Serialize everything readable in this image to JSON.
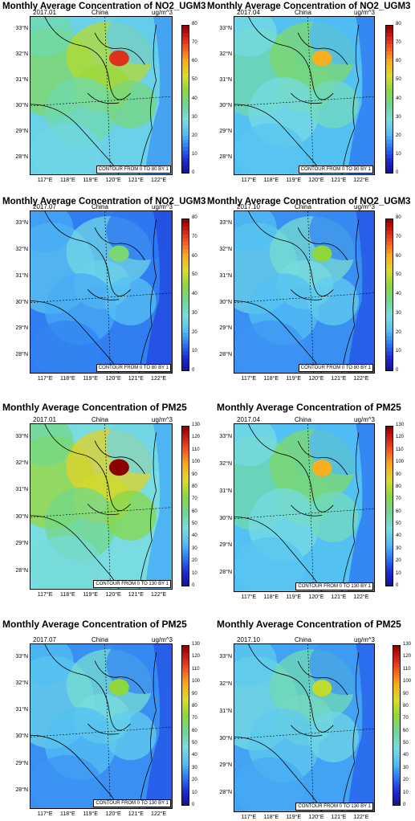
{
  "panels": [
    {
      "title": "Monthly Average Concentration of NO2_UGM3",
      "date": "2017.01",
      "region": "China",
      "unit": "ug/m^3",
      "contour": "CONTOUR FROM 0 TO 80 BY 1",
      "ticks": [
        "80",
        "70",
        "60",
        "50",
        "40",
        "30",
        "20",
        "10",
        "0"
      ],
      "level": 0.72
    },
    {
      "title": "Monthly Average Concentration of NO2_UGM3",
      "date": "2017.04",
      "region": "China",
      "unit": "ug/m^3",
      "contour": "CONTOUR FROM 0 TO 80 BY 1",
      "ticks": [
        "80",
        "70",
        "60",
        "50",
        "40",
        "30",
        "20",
        "10",
        "0"
      ],
      "level": 0.6
    },
    {
      "title": "Monthly Average Concentration of NO2_UGM3",
      "date": "2017.07",
      "region": "China",
      "unit": "ug/m^3",
      "contour": "CONTOUR FROM 0 TO 80 BY 1",
      "ticks": [
        "80",
        "70",
        "60",
        "50",
        "40",
        "30",
        "20",
        "10",
        "0"
      ],
      "level": 0.4
    },
    {
      "title": "Monthly Average Concentration of NO2_UGM3",
      "date": "2017.10",
      "region": "China",
      "unit": "ug/m^3",
      "contour": "CONTOUR FROM 0 TO 80 BY 1",
      "ticks": [
        "80",
        "70",
        "60",
        "50",
        "40",
        "30",
        "20",
        "10",
        "0"
      ],
      "level": 0.45
    },
    {
      "title": "Monthly Average Concentration of PM25",
      "date": "2017.01",
      "region": "China",
      "unit": "ug/m^3",
      "contour": "CONTOUR FROM 0 TO 130 BY 1",
      "ticks": [
        "130",
        "120",
        "110",
        "100",
        "90",
        "80",
        "70",
        "60",
        "50",
        "40",
        "30",
        "20",
        "10",
        "0"
      ],
      "level": 0.8
    },
    {
      "title": "Monthly Average Concentration of PM25",
      "date": "2017.04",
      "region": "China",
      "unit": "ug/m^3",
      "contour": "CONTOUR FROM 0 TO 130 BY 1",
      "ticks": [
        "130",
        "120",
        "110",
        "100",
        "90",
        "80",
        "70",
        "60",
        "50",
        "40",
        "30",
        "20",
        "10",
        "0"
      ],
      "level": 0.6
    },
    {
      "title": "Monthly Average Concentration of PM25",
      "date": "2017.07",
      "region": "China",
      "unit": "ug/m^3",
      "contour": "CONTOUR FROM 0 TO 130 BY 1",
      "ticks": [
        "130",
        "120",
        "110",
        "100",
        "90",
        "80",
        "70",
        "60",
        "50",
        "40",
        "30",
        "20",
        "10",
        "0"
      ],
      "level": 0.45
    },
    {
      "title": "Monthly Average Concentration of PM25",
      "date": "2017.10",
      "region": "China",
      "unit": "ug/m^3",
      "contour": "CONTOUR FROM 0 TO 130 BY 1",
      "ticks": [
        "130",
        "120",
        "110",
        "100",
        "90",
        "80",
        "70",
        "60",
        "50",
        "40",
        "30",
        "20",
        "10",
        "0"
      ],
      "level": 0.5
    }
  ],
  "lat_labels": [
    "33°N",
    "32°N",
    "31°N",
    "30°N",
    "29°N",
    "28°N"
  ],
  "lon_labels": [
    "117°E",
    "118°E",
    "119°E",
    "120°E",
    "121°E",
    "122°E"
  ],
  "colors": {
    "coast": "#000000",
    "grid": "#000000"
  }
}
